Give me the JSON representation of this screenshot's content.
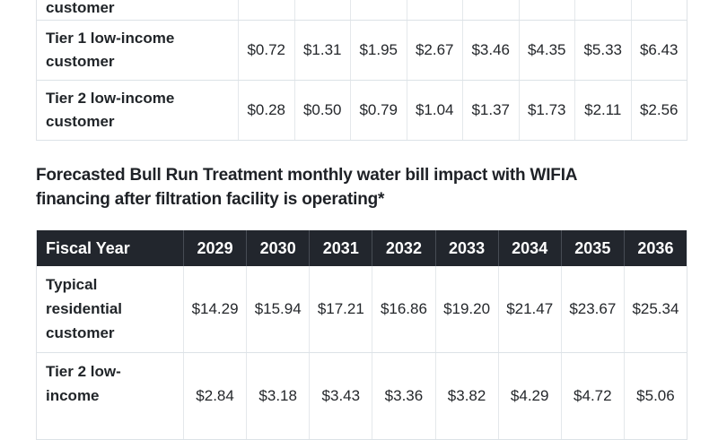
{
  "colors": {
    "header_bg": "#22262d",
    "header_text": "#ffffff",
    "border": "#dee2e6",
    "text": "#212529"
  },
  "table1": {
    "partial_row": {
      "label": "customer",
      "values": [
        "",
        "",
        "",
        "",
        "",
        "",
        "",
        ""
      ]
    },
    "rows": [
      {
        "label": "Tier 1 low-income\ncustomer",
        "values": [
          "$0.72",
          "$1.31",
          "$1.95",
          "$2.67",
          "$3.46",
          "$4.35",
          "$5.33",
          "$6.43"
        ]
      },
      {
        "label": "Tier 2 low-income\ncustomer",
        "values": [
          "$0.28",
          "$0.50",
          "$0.79",
          "$1.04",
          "$1.37",
          "$1.73",
          "$2.11",
          "$2.56"
        ]
      }
    ]
  },
  "heading": {
    "text": "Forecasted Bull Run Treatment monthly water bill impact with WIFIA\nfinancing after filtration facility is operating*"
  },
  "table2": {
    "header": {
      "label": "Fiscal Year",
      "years": [
        "2029",
        "2030",
        "2031",
        "2032",
        "2033",
        "2034",
        "2035",
        "2036"
      ]
    },
    "rows": [
      {
        "label": "Typical\nresidential\ncustomer",
        "values": [
          "$14.29",
          "$15.94",
          "$17.21",
          "$16.86",
          "$19.20",
          "$21.47",
          "$23.67",
          "$25.34"
        ]
      },
      {
        "label": "Tier 2 low-\nincome",
        "values": [
          "$2.84",
          "$3.18",
          "$3.43",
          "$3.36",
          "$3.82",
          "$4.29",
          "$4.72",
          "$5.06"
        ]
      }
    ]
  }
}
